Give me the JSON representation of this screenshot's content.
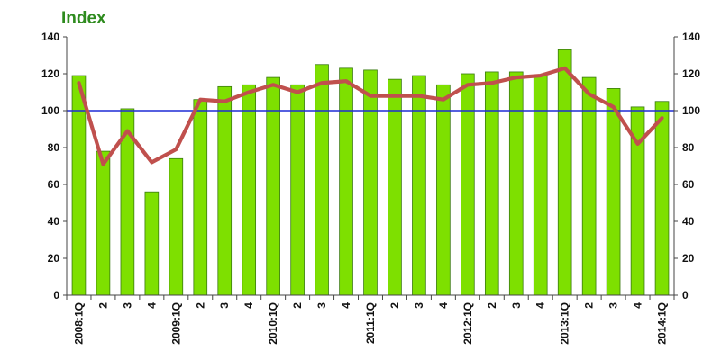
{
  "header": {
    "index_label": "Index"
  },
  "chart_data": {
    "type": "bar",
    "title": "",
    "xlabel": "",
    "ylabel": "",
    "ylim": [
      0,
      140
    ],
    "yticks": [
      0,
      20,
      40,
      60,
      80,
      100,
      120,
      140
    ],
    "right_axis_ticks": [
      0,
      20,
      40,
      60,
      80,
      100,
      120,
      140
    ],
    "categories": [
      "2008:1Q",
      "2",
      "3",
      "4",
      "2009:1Q",
      "2",
      "3",
      "4",
      "2010:1Q",
      "2",
      "3",
      "4",
      "2011:1Q",
      "2",
      "3",
      "4",
      "2012:1Q",
      "2",
      "3",
      "4",
      "2013:1Q",
      "2",
      "3",
      "4",
      "2014:1Q"
    ],
    "series": [
      {
        "type": "bar",
        "color": "#7ee000",
        "values": [
          119,
          78,
          101,
          56,
          74,
          106,
          113,
          114,
          118,
          114,
          125,
          123,
          122,
          117,
          119,
          114,
          120,
          121,
          121,
          119,
          133,
          118,
          112,
          102,
          105
        ]
      },
      {
        "type": "line",
        "color": "#c0504d",
        "values": [
          115,
          71,
          89,
          72,
          79,
          106,
          105,
          110,
          114,
          110,
          115,
          116,
          108,
          108,
          108,
          106,
          114,
          115,
          118,
          119,
          123,
          109,
          102,
          82,
          96
        ]
      }
    ],
    "reference_line": {
      "value": 100,
      "color": "#1f2bd6"
    },
    "grid": false
  }
}
